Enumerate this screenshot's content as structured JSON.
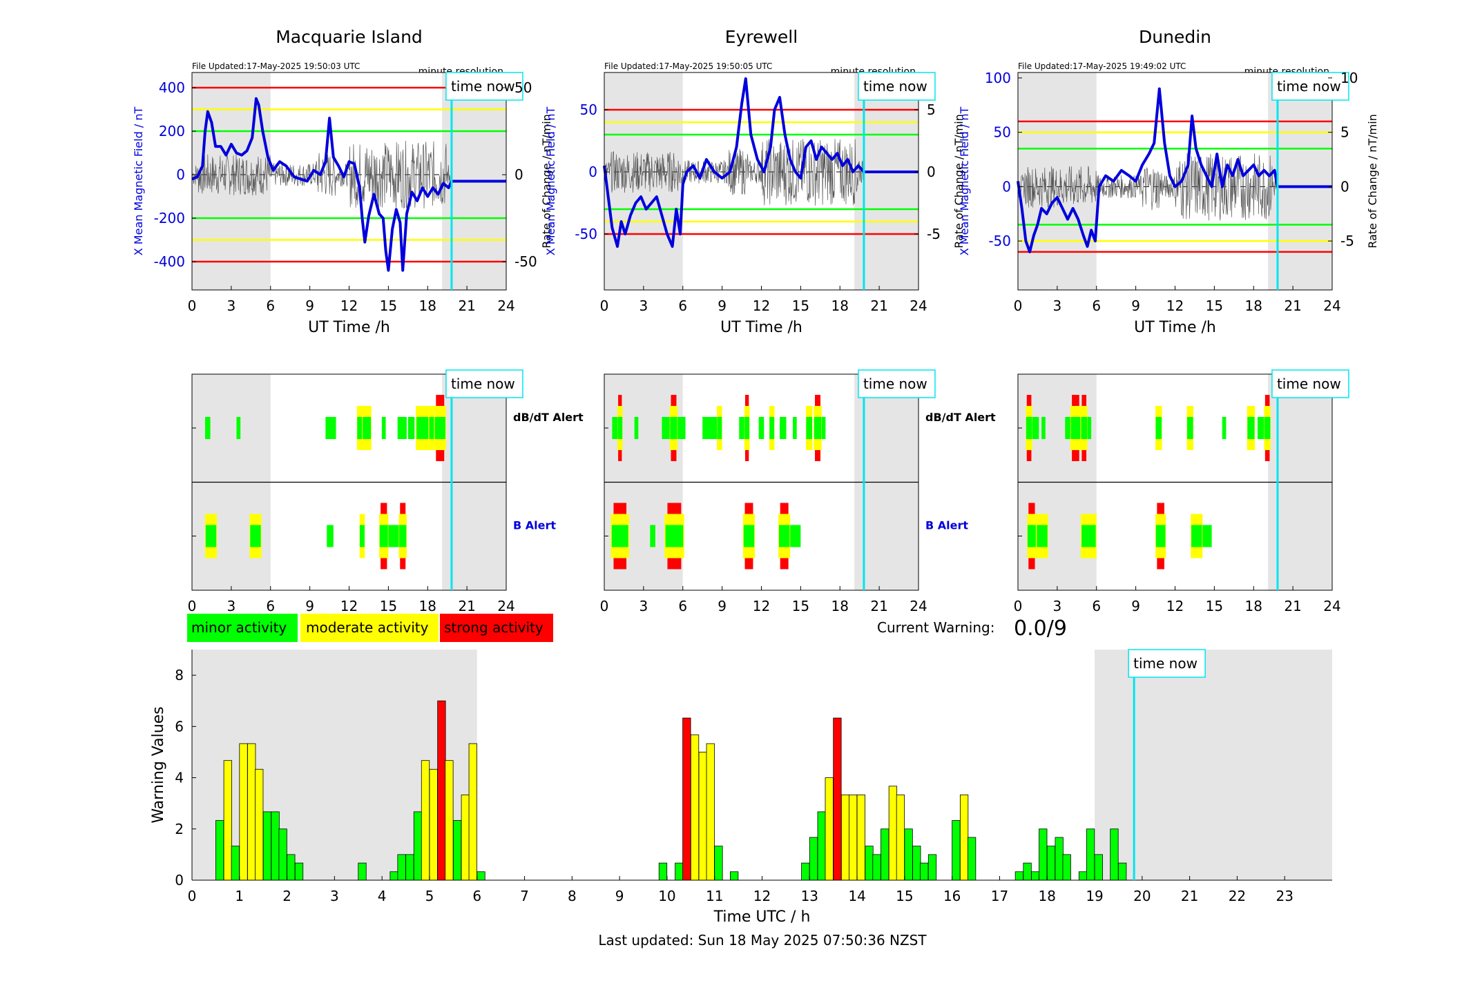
{
  "stations": [
    {
      "name": "Macquarie Island",
      "file_updated": "File Updated:17-May-2025 19:50:03 UTC",
      "resolution": "minute resolution"
    },
    {
      "name": "Eyrewell",
      "file_updated": "File Updated:17-May-2025 19:50:05 UTC",
      "resolution": "minute resolution"
    },
    {
      "name": "Dunedin",
      "file_updated": "File Updated:17-May-2025 19:49:02 UTC",
      "resolution": "minute resolution"
    }
  ],
  "time_now_label": "time now",
  "time_now_hour": 19.83,
  "shade_colors": {
    "shade": "#e5e5e5",
    "green": "#00ff00",
    "yellow": "#ffff00",
    "red": "#ff0000",
    "cyan": "#00e5ee",
    "blue": "#0000dd"
  },
  "axis_labels": {
    "ut_time": "UT Time /h",
    "left_y": "X Mean Magnetic Field / nT",
    "right_y": "Rate of Change / nT/min",
    "bottom_x": "Time UTC / h",
    "bottom_y": "Warning Values"
  },
  "alert_labels": {
    "dbdt": "dB/dT Alert",
    "b": "B Alert"
  },
  "legend": {
    "minor": "minor activity",
    "moderate": "moderate activity",
    "strong": "strong activity"
  },
  "current_warning": {
    "label": "Current Warning:",
    "value": "0.0/9"
  },
  "last_updated": "Last updated: Sun 18 May 2025 07:50:36 NZST",
  "chart_data": [
    {
      "type": "line",
      "station": "Macquarie Island",
      "xlim": [
        0,
        24
      ],
      "xticks": [
        0,
        3,
        6,
        9,
        12,
        15,
        18,
        21,
        24
      ],
      "ylim": [
        -530,
        470
      ],
      "yticks": [
        400,
        200,
        0,
        -200,
        -400
      ],
      "right_ylim": [
        -66.25,
        58.75
      ],
      "right_yticks": [
        50,
        0,
        -50
      ],
      "thresholds": {
        "red": 400,
        "yellow": 300,
        "green": 200
      },
      "shaded": [
        [
          0,
          6
        ],
        [
          19.1,
          24
        ]
      ],
      "mean_field": {
        "x": [
          0,
          0.4,
          0.8,
          1.0,
          1.2,
          1.5,
          1.8,
          2.2,
          2.6,
          3.0,
          3.4,
          3.8,
          4.2,
          4.6,
          4.9,
          5.1,
          5.4,
          5.8,
          6.2,
          6.7,
          7.2,
          7.8,
          8.3,
          8.8,
          9.3,
          9.8,
          10.2,
          10.5,
          10.8,
          11.2,
          11.6,
          12.0,
          12.4,
          12.8,
          13.0,
          13.2,
          13.5,
          13.9,
          14.3,
          14.6,
          14.8,
          15.0,
          15.3,
          15.6,
          15.9,
          16.1,
          16.4,
          16.8,
          17.2,
          17.6,
          18.0,
          18.4,
          18.8,
          19.2,
          19.6,
          19.83,
          24
        ],
        "y": [
          -20,
          -10,
          40,
          200,
          290,
          240,
          130,
          130,
          90,
          140,
          100,
          90,
          110,
          170,
          350,
          320,
          200,
          80,
          20,
          60,
          40,
          -10,
          -20,
          -30,
          20,
          0,
          60,
          260,
          80,
          40,
          -10,
          60,
          50,
          -60,
          -200,
          -310,
          -190,
          -90,
          -180,
          -200,
          -350,
          -440,
          -250,
          -160,
          -220,
          -440,
          -180,
          -80,
          -120,
          -60,
          -100,
          -60,
          -90,
          -40,
          -60,
          -30,
          -30
        ]
      }
    },
    {
      "type": "line",
      "station": "Eyrewell",
      "xlim": [
        0,
        24
      ],
      "xticks": [
        0,
        3,
        6,
        9,
        12,
        15,
        18,
        21,
        24
      ],
      "ylim": [
        -95,
        80
      ],
      "yticks": [
        50,
        0,
        -50
      ],
      "right_ylim": [
        -9.5,
        8
      ],
      "right_yticks": [
        5,
        0,
        -5
      ],
      "thresholds": {
        "red": 50,
        "yellow": 40,
        "green": 30
      },
      "shaded": [
        [
          0,
          6
        ],
        [
          19.1,
          24
        ]
      ],
      "mean_field": {
        "x": [
          0,
          0.3,
          0.6,
          1.0,
          1.3,
          1.6,
          2.0,
          2.4,
          2.8,
          3.2,
          3.6,
          4.0,
          4.4,
          4.8,
          5.2,
          5.5,
          5.8,
          6.0,
          6.3,
          6.8,
          7.3,
          7.8,
          8.4,
          9.0,
          9.6,
          10.1,
          10.5,
          10.8,
          11.2,
          11.7,
          12.2,
          12.7,
          13.0,
          13.4,
          13.8,
          14.2,
          14.6,
          15.0,
          15.4,
          15.8,
          16.2,
          16.6,
          17.0,
          17.4,
          17.8,
          18.2,
          18.6,
          19.0,
          19.4,
          19.83,
          24
        ],
        "y": [
          5,
          -20,
          -45,
          -60,
          -40,
          -50,
          -35,
          -25,
          -20,
          -30,
          -25,
          -20,
          -35,
          -50,
          -60,
          -30,
          -50,
          -10,
          0,
          5,
          -5,
          10,
          0,
          -5,
          0,
          20,
          55,
          75,
          30,
          10,
          0,
          20,
          50,
          60,
          30,
          10,
          0,
          -5,
          20,
          25,
          10,
          20,
          15,
          10,
          15,
          5,
          10,
          0,
          5,
          0,
          0
        ]
      }
    },
    {
      "type": "line",
      "station": "Dunedin",
      "xlim": [
        0,
        24
      ],
      "xticks": [
        0,
        3,
        6,
        9,
        12,
        15,
        18,
        21,
        24
      ],
      "ylim": [
        -95,
        105
      ],
      "yticks": [
        100,
        50,
        0,
        -50
      ],
      "right_ylim": [
        -9.5,
        10.5
      ],
      "right_yticks": [
        10,
        5,
        0,
        -5
      ],
      "thresholds": {
        "red": 60,
        "yellow": 50,
        "green": 35
      },
      "shaded": [
        [
          0,
          6
        ],
        [
          19.1,
          24
        ]
      ],
      "mean_field": {
        "x": [
          0,
          0.3,
          0.6,
          0.9,
          1.2,
          1.5,
          1.8,
          2.2,
          2.6,
          3.0,
          3.4,
          3.8,
          4.2,
          4.6,
          5.0,
          5.3,
          5.6,
          5.9,
          6.2,
          6.7,
          7.3,
          7.9,
          8.5,
          9.0,
          9.5,
          10.0,
          10.4,
          10.8,
          11.2,
          11.6,
          12.0,
          12.5,
          13.0,
          13.3,
          13.6,
          14.0,
          14.4,
          14.8,
          15.2,
          15.6,
          16.0,
          16.4,
          16.8,
          17.2,
          17.6,
          18.0,
          18.4,
          18.8,
          19.2,
          19.6,
          19.83,
          24
        ],
        "y": [
          5,
          -20,
          -50,
          -60,
          -45,
          -35,
          -20,
          -25,
          -15,
          -10,
          -20,
          -30,
          -20,
          -30,
          -45,
          -55,
          -40,
          -50,
          0,
          10,
          5,
          15,
          10,
          5,
          20,
          30,
          40,
          90,
          40,
          10,
          0,
          5,
          20,
          65,
          35,
          20,
          10,
          0,
          30,
          0,
          20,
          10,
          25,
          10,
          15,
          20,
          10,
          15,
          10,
          15,
          0,
          0
        ]
      }
    },
    {
      "type": "bar",
      "title": "Warning Values",
      "xlabel": "Time UTC / h",
      "ylabel": "Warning Values",
      "xlim": [
        0,
        24
      ],
      "ylim": [
        0,
        9
      ],
      "yticks": [
        0,
        2,
        4,
        6,
        8
      ],
      "xticks": [
        0,
        1,
        2,
        3,
        4,
        5,
        6,
        7,
        8,
        9,
        10,
        11,
        12,
        13,
        14,
        15,
        16,
        17,
        18,
        19,
        20,
        21,
        22,
        23
      ],
      "bar_width_h": 0.1667,
      "shaded": [
        [
          0,
          6
        ],
        [
          19.0,
          24
        ]
      ],
      "bars": [
        [
          0.5,
          2.33,
          "g"
        ],
        [
          0.67,
          4.67,
          "y"
        ],
        [
          0.83,
          1.33,
          "g"
        ],
        [
          1.0,
          5.33,
          "y"
        ],
        [
          1.17,
          5.33,
          "y"
        ],
        [
          1.33,
          4.33,
          "y"
        ],
        [
          1.5,
          2.67,
          "g"
        ],
        [
          1.67,
          2.67,
          "g"
        ],
        [
          1.83,
          2.0,
          "g"
        ],
        [
          2.0,
          1.0,
          "g"
        ],
        [
          2.17,
          0.67,
          "g"
        ],
        [
          3.5,
          0.67,
          "g"
        ],
        [
          4.17,
          0.33,
          "g"
        ],
        [
          4.33,
          1.0,
          "g"
        ],
        [
          4.5,
          1.0,
          "g"
        ],
        [
          4.67,
          2.67,
          "g"
        ],
        [
          4.83,
          4.67,
          "y"
        ],
        [
          5.0,
          4.33,
          "y"
        ],
        [
          5.17,
          7.0,
          "r"
        ],
        [
          5.33,
          4.67,
          "y"
        ],
        [
          5.5,
          2.33,
          "g"
        ],
        [
          5.67,
          3.33,
          "y"
        ],
        [
          5.83,
          5.33,
          "y"
        ],
        [
          6.0,
          0.33,
          "g"
        ],
        [
          9.83,
          0.67,
          "g"
        ],
        [
          10.17,
          0.67,
          "g"
        ],
        [
          10.33,
          6.33,
          "r"
        ],
        [
          10.5,
          5.67,
          "y"
        ],
        [
          10.67,
          5.0,
          "y"
        ],
        [
          10.83,
          5.33,
          "y"
        ],
        [
          11.0,
          1.33,
          "g"
        ],
        [
          11.33,
          0.33,
          "g"
        ],
        [
          12.83,
          0.67,
          "g"
        ],
        [
          13.0,
          1.67,
          "g"
        ],
        [
          13.17,
          2.67,
          "g"
        ],
        [
          13.33,
          4.0,
          "y"
        ],
        [
          13.5,
          6.33,
          "r"
        ],
        [
          13.67,
          3.33,
          "y"
        ],
        [
          13.83,
          3.33,
          "y"
        ],
        [
          14.0,
          3.33,
          "y"
        ],
        [
          14.17,
          1.33,
          "g"
        ],
        [
          14.33,
          1.0,
          "g"
        ],
        [
          14.5,
          2.0,
          "g"
        ],
        [
          14.67,
          3.67,
          "y"
        ],
        [
          14.83,
          3.33,
          "y"
        ],
        [
          15.0,
          2.0,
          "g"
        ],
        [
          15.17,
          1.33,
          "g"
        ],
        [
          15.33,
          0.67,
          "g"
        ],
        [
          15.5,
          1.0,
          "g"
        ],
        [
          16.0,
          2.33,
          "g"
        ],
        [
          16.17,
          3.33,
          "y"
        ],
        [
          16.33,
          1.67,
          "g"
        ],
        [
          17.33,
          0.33,
          "g"
        ],
        [
          17.5,
          0.67,
          "g"
        ],
        [
          17.67,
          0.33,
          "g"
        ],
        [
          17.83,
          2.0,
          "g"
        ],
        [
          18.0,
          1.33,
          "g"
        ],
        [
          18.17,
          1.67,
          "g"
        ],
        [
          18.33,
          1.0,
          "g"
        ],
        [
          18.67,
          0.33,
          "g"
        ],
        [
          18.83,
          2.0,
          "g"
        ],
        [
          19.0,
          1.0,
          "g"
        ],
        [
          19.33,
          2.0,
          "g"
        ],
        [
          19.5,
          0.67,
          "g"
        ]
      ]
    }
  ],
  "alert_blocks": {
    "dbdt": [
      [
        [
          1.0,
          1.4,
          0
        ],
        [
          3.4,
          3.7,
          0
        ],
        [
          10.2,
          11.0,
          0
        ],
        [
          12.6,
          13.0,
          1
        ],
        [
          13.0,
          13.7,
          1
        ],
        [
          14.5,
          14.8,
          0
        ],
        [
          15.7,
          16.4,
          0
        ],
        [
          16.5,
          17.0,
          0
        ],
        [
          17.1,
          18.1,
          1
        ],
        [
          18.1,
          18.5,
          1
        ],
        [
          18.5,
          19.4,
          2
        ]
      ],
      [
        [
          0.6,
          1.0,
          0
        ],
        [
          1.0,
          1.4,
          2
        ],
        [
          2.3,
          2.6,
          0
        ],
        [
          4.4,
          5.0,
          0
        ],
        [
          5.0,
          5.6,
          2
        ],
        [
          5.6,
          6.2,
          0
        ],
        [
          7.5,
          8.6,
          0
        ],
        [
          8.6,
          9.0,
          1
        ],
        [
          10.3,
          10.7,
          0
        ],
        [
          10.7,
          11.1,
          2
        ],
        [
          11.8,
          12.2,
          0
        ],
        [
          12.6,
          13.0,
          1
        ],
        [
          13.4,
          13.9,
          0
        ],
        [
          14.4,
          14.7,
          0
        ],
        [
          15.4,
          15.9,
          1
        ],
        [
          16.0,
          16.6,
          2
        ],
        [
          16.6,
          16.9,
          0
        ]
      ],
      [
        [
          0.6,
          1.1,
          2
        ],
        [
          1.1,
          1.6,
          0
        ],
        [
          1.8,
          2.1,
          0
        ],
        [
          3.6,
          4.0,
          0
        ],
        [
          4.0,
          4.8,
          2
        ],
        [
          4.8,
          5.3,
          2
        ],
        [
          5.3,
          5.6,
          0
        ],
        [
          10.5,
          11.0,
          1
        ],
        [
          12.9,
          13.4,
          1
        ],
        [
          15.6,
          15.9,
          0
        ],
        [
          17.5,
          18.1,
          1
        ],
        [
          18.3,
          18.8,
          0
        ],
        [
          18.8,
          19.3,
          2
        ]
      ]
    ],
    "b": [
      [
        [
          1.0,
          1.9,
          1
        ],
        [
          4.4,
          5.3,
          1
        ],
        [
          10.3,
          10.8,
          0
        ],
        [
          12.8,
          13.2,
          1
        ],
        [
          14.3,
          15.0,
          2
        ],
        [
          15.0,
          15.8,
          0
        ],
        [
          15.8,
          16.4,
          2
        ]
      ],
      [
        [
          0.5,
          1.9,
          2
        ],
        [
          3.5,
          3.9,
          0
        ],
        [
          4.6,
          6.1,
          2
        ],
        [
          10.6,
          11.5,
          2
        ],
        [
          13.3,
          14.2,
          2
        ],
        [
          14.2,
          15.0,
          0
        ]
      ],
      [
        [
          0.7,
          1.4,
          2
        ],
        [
          1.4,
          2.3,
          1
        ],
        [
          4.8,
          6.0,
          1
        ],
        [
          10.5,
          11.3,
          2
        ],
        [
          13.2,
          14.1,
          1
        ],
        [
          14.1,
          14.8,
          0
        ]
      ]
    ]
  }
}
